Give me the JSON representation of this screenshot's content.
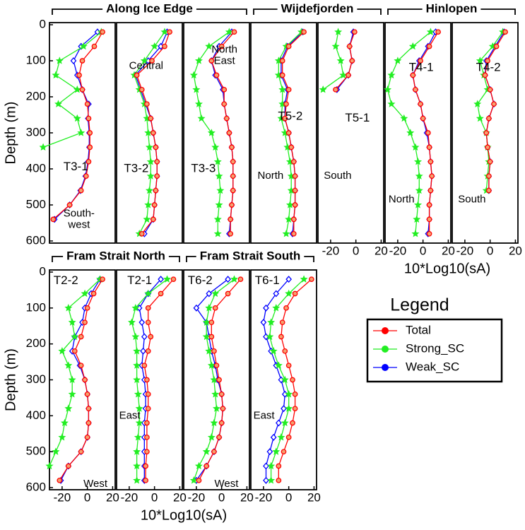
{
  "groups": [
    "Along Ice Edge",
    "Wijdefjorden",
    "Hinlopen",
    "Fram Strait North",
    "Fram Strait South"
  ],
  "legend": {
    "title": "Legend"
  },
  "chart_data": [
    {
      "type": "line",
      "label": "T3-1",
      "annotation": [
        "South-",
        "west"
      ],
      "ylabel": "Depth (m)",
      "y": [
        20,
        60,
        100,
        140,
        180,
        220,
        260,
        300,
        340,
        380,
        420,
        460,
        500,
        540,
        580
      ],
      "series": [
        {
          "name": "Total",
          "color": "#ff0000",
          "values": [
            12,
            5.5,
            -4,
            -6.5,
            -4,
            0,
            1,
            2,
            2,
            1,
            -1,
            -5,
            -14,
            -27,
            null
          ]
        },
        {
          "name": "Strong_SC",
          "color": "#22ee22",
          "values": [
            11,
            -3,
            -22,
            -25,
            -8,
            -23,
            -8,
            -5,
            -35,
            null,
            null,
            null,
            null,
            null,
            null
          ]
        },
        {
          "name": "Weak_SC",
          "color": "#0000ff",
          "values": [
            8,
            -5,
            -11,
            -8,
            -4,
            1,
            0.5,
            1.5,
            1.5,
            0.5,
            -1.5,
            -5.5,
            -14,
            -26,
            null
          ]
        }
      ],
      "xlim": [
        -30,
        22
      ],
      "ylim": [
        0,
        600
      ],
      "yticks": [
        0,
        100,
        200,
        300,
        400,
        500,
        600
      ]
    },
    {
      "type": "line",
      "label": "T3-2",
      "annotation": [
        "Central"
      ],
      "y": [
        20,
        60,
        100,
        140,
        180,
        220,
        260,
        300,
        340,
        380,
        420,
        460,
        500,
        540,
        580
      ],
      "series": [
        {
          "name": "Total",
          "color": "#ff0000",
          "values": [
            12,
            8,
            -2,
            -14,
            -10,
            -6,
            -3,
            -1,
            1,
            2,
            2,
            1,
            0,
            -1,
            -10
          ]
        },
        {
          "name": "Strong_SC",
          "color": "#22ee22",
          "values": [
            8,
            0,
            -8,
            -16,
            -12,
            -8,
            -6,
            -5,
            -4,
            -3,
            -3,
            -4,
            -5,
            -6,
            -12
          ]
        },
        {
          "name": "Weak_SC",
          "color": "#0000ff",
          "values": [
            10,
            5,
            -5,
            -15,
            -11,
            -7,
            -3,
            -1,
            1,
            2,
            2,
            1,
            0,
            -1,
            -8
          ]
        }
      ],
      "xlim": [
        -30,
        22
      ],
      "ylim": [
        0,
        600
      ]
    },
    {
      "type": "line",
      "label": "T3-3",
      "annotation": [
        "North",
        "East"
      ],
      "y": [
        20,
        60,
        100,
        140,
        180,
        220,
        260,
        300,
        340,
        380,
        420,
        460,
        500,
        540,
        580
      ],
      "series": [
        {
          "name": "Total",
          "color": "#ff0000",
          "values": [
            10,
            0,
            -8,
            -4,
            2,
            2,
            4,
            6,
            8,
            9,
            9,
            9,
            8,
            7,
            7
          ]
        },
        {
          "name": "Strong_SC",
          "color": "#22ee22",
          "values": [
            6,
            -10,
            -18,
            -22,
            -20,
            -18,
            -16,
            -8,
            -5,
            -3,
            -2,
            -1,
            -2,
            -3,
            -3
          ]
        },
        {
          "name": "Weak_SC",
          "color": "#0000ff",
          "values": [
            8,
            -2,
            -8,
            -5,
            1,
            2,
            4,
            6,
            8,
            9,
            9,
            9,
            8,
            7,
            6
          ]
        }
      ],
      "xlim": [
        -30,
        22
      ],
      "ylim": [
        0,
        600
      ]
    },
    {
      "type": "line",
      "label": "T5-2",
      "annotation": [
        "North"
      ],
      "y": [
        20,
        60,
        100,
        140,
        180,
        220,
        260,
        300,
        340,
        380,
        420,
        460,
        500,
        540,
        580
      ],
      "series": [
        {
          "name": "Total",
          "color": "#ff0000",
          "values": [
            12,
            0,
            -5,
            -5,
            0,
            -2,
            -3,
            0,
            2,
            4,
            5,
            5,
            5,
            4,
            4
          ]
        },
        {
          "name": "Strong_SC",
          "color": "#22ee22",
          "values": [
            10,
            -2,
            -8,
            -8,
            -5,
            -5,
            -6,
            -3,
            -1,
            1,
            2,
            2,
            1,
            0,
            -2
          ]
        },
        {
          "name": "Weak_SC",
          "color": "#0000ff",
          "values": [
            11,
            -1,
            -6,
            -6,
            -1,
            -3,
            -3,
            0,
            2,
            4,
            5,
            5,
            5,
            4,
            3
          ]
        }
      ],
      "xlim": [
        -30,
        22
      ],
      "ylim": [
        0,
        600
      ]
    },
    {
      "type": "line",
      "label": "T5-1",
      "annotation": [
        "South"
      ],
      "y": [
        20,
        60,
        100,
        140,
        180,
        220,
        260,
        300,
        340,
        380,
        420,
        460,
        500,
        540,
        580
      ],
      "series": [
        {
          "name": "Total",
          "color": "#ff0000",
          "values": [
            -1,
            -5,
            -3,
            -6,
            -16,
            null,
            null,
            null,
            null,
            null,
            null,
            null,
            null,
            null,
            null
          ]
        },
        {
          "name": "Strong_SC",
          "color": "#22ee22",
          "values": [
            -14,
            -16,
            -12,
            -10,
            -26,
            null,
            null,
            null,
            null,
            null,
            null,
            null,
            null,
            null,
            null
          ]
        },
        {
          "name": "Weak_SC",
          "color": "#0000ff",
          "values": [
            -2,
            -5,
            -3,
            -6,
            -15,
            null,
            null,
            null,
            null,
            null,
            null,
            null,
            null,
            null,
            null
          ]
        }
      ],
      "xlim": [
        -30,
        22
      ],
      "ylim": [
        0,
        600
      ],
      "xticks": [
        -20,
        0,
        20
      ]
    },
    {
      "type": "line",
      "label": "T4-1",
      "annotation": [
        "North"
      ],
      "xlabel": "10*Log10(sA)",
      "y": [
        20,
        60,
        100,
        140,
        180,
        220,
        260,
        300,
        340,
        380,
        420,
        460,
        500,
        540,
        580
      ],
      "series": [
        {
          "name": "Total",
          "color": "#ff0000",
          "values": [
            12,
            5,
            -2,
            -8,
            -6,
            -2,
            0,
            4,
            5,
            6,
            7,
            6,
            5,
            5,
            5
          ]
        },
        {
          "name": "Strong_SC",
          "color": "#22ee22",
          "values": [
            6,
            -8,
            -20,
            -25,
            -28,
            -25,
            -15,
            -10,
            -6,
            -4,
            -3,
            -3,
            -4,
            -5,
            -6
          ]
        },
        {
          "name": "Weak_SC",
          "color": "#0000ff",
          "values": [
            10,
            4,
            -3,
            -8,
            -6,
            -2,
            0,
            3,
            5,
            6,
            7,
            6,
            5,
            5,
            4
          ]
        }
      ],
      "xlim": [
        -30,
        22
      ],
      "ylim": [
        0,
        600
      ],
      "xticks": [
        -20,
        0,
        20
      ]
    },
    {
      "type": "line",
      "label": "T4-2",
      "annotation": [
        "South"
      ],
      "y": [
        20,
        60,
        100,
        140,
        180,
        220,
        260,
        300,
        340,
        380,
        420,
        460,
        500,
        540,
        580
      ],
      "series": [
        {
          "name": "Total",
          "color": "#ff0000",
          "values": [
            12,
            5,
            -2,
            -4,
            0,
            3,
            -1,
            -3,
            -2,
            0,
            -1,
            -1,
            null,
            null,
            null
          ]
        },
        {
          "name": "Strong_SC",
          "color": "#22ee22",
          "values": [
            10,
            2,
            -8,
            -5,
            -2,
            -10,
            -8,
            -3,
            -2,
            -1,
            -2,
            -3,
            null,
            null,
            null
          ]
        },
        {
          "name": "Weak_SC",
          "color": "#0000ff",
          "values": [
            11,
            4,
            -3,
            -4,
            0,
            3,
            -1,
            -3,
            -2,
            0,
            -1,
            -1,
            null,
            null,
            null
          ]
        }
      ],
      "xlim": [
        -30,
        22
      ],
      "ylim": [
        0,
        600
      ],
      "xticks": [
        -20,
        0,
        20
      ]
    },
    {
      "type": "line",
      "label": "T2-2",
      "annotation": [
        "West"
      ],
      "ylabel": "Depth (m)",
      "y": [
        20,
        60,
        100,
        140,
        180,
        220,
        260,
        300,
        340,
        380,
        420,
        460,
        500,
        540,
        580
      ],
      "series": [
        {
          "name": "Total",
          "color": "#ff0000",
          "values": [
            12,
            5,
            0,
            -2,
            -5,
            -10,
            -5,
            -2,
            0,
            1,
            1,
            0,
            -5,
            -15,
            -22
          ]
        },
        {
          "name": "Strong_SC",
          "color": "#22ee22",
          "values": [
            10,
            -2,
            -15,
            -12,
            -10,
            -20,
            -15,
            -12,
            -12,
            -15,
            -18,
            -20,
            -25,
            -30,
            null
          ]
        },
        {
          "name": "Weak_SC",
          "color": "#0000ff",
          "values": [
            10,
            3,
            -2,
            -4,
            -10,
            -12,
            -6,
            -2,
            0,
            1,
            1,
            0,
            -5,
            -15,
            -21
          ]
        }
      ],
      "xlim": [
        -30,
        22
      ],
      "ylim": [
        0,
        600
      ],
      "yticks": [
        0,
        100,
        200,
        300,
        400,
        500,
        600
      ],
      "xticks": [
        -20,
        0,
        20
      ]
    },
    {
      "type": "line",
      "label": "T2-1",
      "annotation": [
        "East"
      ],
      "xlabel": "10*Log10(sA)",
      "y": [
        20,
        60,
        100,
        140,
        180,
        220,
        260,
        300,
        340,
        380,
        420,
        460,
        500,
        540,
        580
      ],
      "series": [
        {
          "name": "Total",
          "color": "#ff0000",
          "values": [
            15,
            5,
            -5,
            -5,
            -3,
            -5,
            -8,
            -6,
            -5,
            -5,
            -6,
            -6,
            -6,
            -7,
            -7
          ]
        },
        {
          "name": "Strong_SC",
          "color": "#22ee22",
          "values": [
            10,
            -5,
            -15,
            -18,
            -15,
            -14,
            -14,
            -14,
            -13,
            -12,
            -12,
            -13,
            -14,
            -14,
            -14
          ]
        },
        {
          "name": "Weak_SC",
          "color": "#0000ff",
          "values": [
            5,
            -5,
            -12,
            -10,
            -8,
            -9,
            -10,
            -8,
            -7,
            -7,
            -8,
            -8,
            -8,
            -8,
            -8
          ]
        }
      ],
      "xlim": [
        -30,
        22
      ],
      "ylim": [
        0,
        600
      ],
      "xticks": [
        -20,
        0,
        20
      ]
    },
    {
      "type": "line",
      "label": "T6-2",
      "annotation": [
        "West"
      ],
      "y": [
        20,
        60,
        100,
        140,
        180,
        220,
        260,
        300,
        340,
        380,
        420,
        460,
        500,
        540,
        580
      ],
      "series": [
        {
          "name": "Total",
          "color": "#ff0000",
          "values": [
            15,
            5,
            -5,
            -8,
            -8,
            -6,
            -4,
            -2,
            0,
            1,
            0,
            -2,
            -6,
            -12,
            -18
          ]
        },
        {
          "name": "Strong_SC",
          "color": "#22ee22",
          "values": [
            10,
            -5,
            -10,
            -12,
            -12,
            -10,
            -8,
            -6,
            -5,
            -4,
            -6,
            -8,
            -12,
            -18,
            -22
          ]
        },
        {
          "name": "Weak_SC",
          "color": "#0000ff",
          "values": [
            5,
            -10,
            -20,
            -12,
            -10,
            -8,
            -5,
            -3,
            0,
            1,
            0,
            -2,
            -6,
            -12,
            -20
          ]
        }
      ],
      "xlim": [
        -30,
        22
      ],
      "ylim": [
        0,
        600
      ],
      "xticks": [
        -20,
        0,
        20
      ]
    },
    {
      "type": "line",
      "label": "T6-1",
      "annotation": [
        "East"
      ],
      "y": [
        20,
        60,
        100,
        140,
        180,
        220,
        260,
        300,
        340,
        380,
        420,
        460,
        500,
        540,
        580
      ],
      "series": [
        {
          "name": "Total",
          "color": "#ff0000",
          "values": [
            18,
            5,
            -2,
            -5,
            -6,
            -3,
            0,
            3,
            5,
            5,
            3,
            0,
            -4,
            -8,
            -8
          ]
        },
        {
          "name": "Strong_SC",
          "color": "#22ee22",
          "values": [
            12,
            0,
            -10,
            -14,
            -15,
            -12,
            -8,
            -3,
            0,
            0,
            -3,
            -6,
            -10,
            -14,
            -14
          ]
        },
        {
          "name": "Weak_SC",
          "color": "#0000ff",
          "values": [
            0,
            -10,
            -18,
            -20,
            -18,
            -14,
            -10,
            -6,
            -3,
            -4,
            -8,
            -12,
            -15,
            -18,
            -18
          ]
        }
      ],
      "xlim": [
        -30,
        22
      ],
      "ylim": [
        0,
        600
      ],
      "xticks": [
        -20,
        0,
        20
      ]
    }
  ]
}
